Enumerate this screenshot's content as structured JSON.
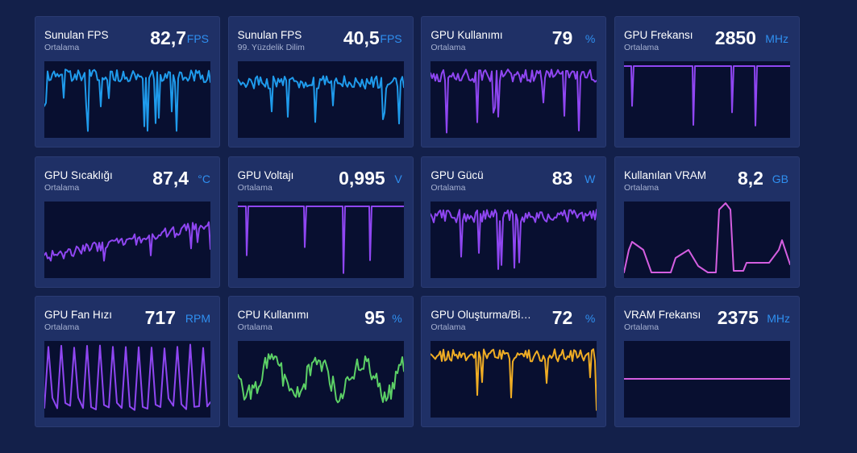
{
  "colors": {
    "background": "#13204a",
    "tile": "#1f3066",
    "plot_bg": "#080f30",
    "unit_text": "#2f8ff0",
    "blue_line": "#1f9bec",
    "purple_line": "#8f46f2",
    "pink_line": "#d45ee0",
    "green_line": "#5cd066",
    "orange_line": "#f0ad24"
  },
  "tiles": [
    {
      "title": "Sunulan FPS",
      "subtitle": "Ortalama",
      "value": "82,7",
      "unit": "FPS",
      "line_color": "#1f9bec",
      "pattern": "noisy_high"
    },
    {
      "title": "Sunulan FPS",
      "subtitle": "99. Yüzdelik Dilim",
      "value": "40,5",
      "unit": "FPS",
      "line_color": "#1f9bec",
      "pattern": "noisy_mid"
    },
    {
      "title": "GPU Kullanımı",
      "subtitle": "Ortalama",
      "value": "79",
      "unit": "%",
      "line_color": "#8f46f2",
      "pattern": "noisy_high"
    },
    {
      "title": "GPU Frekansı",
      "subtitle": "Ortalama",
      "value": "2850",
      "unit": "MHz",
      "line_color": "#8f46f2",
      "pattern": "flat_dips"
    },
    {
      "title": "GPU Sıcaklığı",
      "subtitle": "Ortalama",
      "value": "87,4",
      "unit": "°C",
      "line_color": "#8f46f2",
      "pattern": "rising"
    },
    {
      "title": "GPU Voltajı",
      "subtitle": "Ortalama",
      "value": "0,995",
      "unit": "V",
      "line_color": "#8f46f2",
      "pattern": "flat_dips"
    },
    {
      "title": "GPU Gücü",
      "subtitle": "Ortalama",
      "value": "83",
      "unit": "W",
      "line_color": "#8f46f2",
      "pattern": "noisy_high"
    },
    {
      "title": "Kullanılan VRAM",
      "subtitle": "Ortalama",
      "value": "8,2",
      "unit": "GB",
      "line_color": "#d45ee0",
      "pattern": "steps"
    },
    {
      "title": "GPU Fan Hızı",
      "subtitle": "Ortalama",
      "value": "717",
      "unit": "RPM",
      "line_color": "#8f46f2",
      "pattern": "spikes"
    },
    {
      "title": "CPU Kullanımı",
      "subtitle": "Ortalama",
      "value": "95",
      "unit": "%",
      "line_color": "#5cd066",
      "pattern": "waves"
    },
    {
      "title": "GPU Oluşturma/Bilgisayar",
      "subtitle": "Ortalama",
      "value": "72",
      "unit": "%",
      "line_color": "#f0ad24",
      "pattern": "noisy_high"
    },
    {
      "title": "VRAM Frekansı",
      "subtitle": "Ortalama",
      "value": "2375",
      "unit": "MHz",
      "line_color": "#d45ee0",
      "pattern": "flat"
    }
  ]
}
